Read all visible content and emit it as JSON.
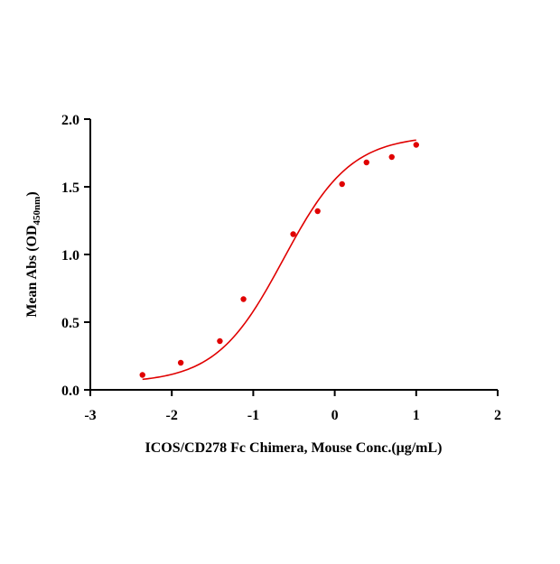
{
  "chart_data": {
    "type": "scatter",
    "title": "",
    "xlabel": "ICOS/CD278 Fc Chimera, Mouse Conc.(μg/mL)",
    "ylabel": {
      "main": "Mean Abs (OD",
      "sub": "450nm",
      "close": ")"
    },
    "xlim": [
      -3,
      2
    ],
    "ylim": [
      0,
      2
    ],
    "x_ticks": [
      -3,
      -2,
      -1,
      0,
      1,
      2
    ],
    "x_tick_labels": [
      "-3",
      "-2",
      "-1",
      "0",
      "1",
      "2"
    ],
    "y_ticks": [
      0,
      0.5,
      1,
      1.5,
      2
    ],
    "y_tick_labels": [
      "0.0",
      "0.5",
      "1.0",
      "1.5",
      "2.0"
    ],
    "grid": false,
    "legend": "none",
    "series": [
      {
        "points": [
          {
            "x": -2.36,
            "y": 0.11
          },
          {
            "x": -1.89,
            "y": 0.2
          },
          {
            "x": -1.41,
            "y": 0.36
          },
          {
            "x": -1.12,
            "y": 0.67
          },
          {
            "x": -0.51,
            "y": 1.15
          },
          {
            "x": -0.21,
            "y": 1.32
          },
          {
            "x": 0.09,
            "y": 1.52
          },
          {
            "x": 0.39,
            "y": 1.68
          },
          {
            "x": 0.7,
            "y": 1.72
          },
          {
            "x": 1.0,
            "y": 1.81
          }
        ],
        "fit": {
          "model": "four-parameter logistic",
          "bottom": 0.05,
          "top": 1.88,
          "log_ec50": -0.63,
          "hill_slope": 1.05
        },
        "color": "#e00000"
      }
    ]
  }
}
